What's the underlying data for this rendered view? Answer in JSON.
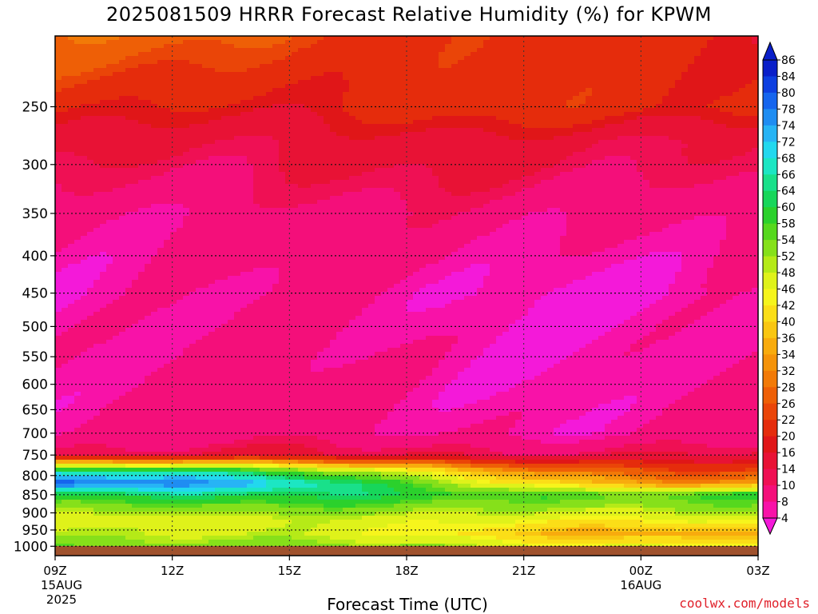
{
  "title": "2025081509 HRRR Forecast Relative Humidity (%) for KPWM",
  "credit": "coolwx.com/models",
  "chart_data": {
    "type": "heatmap",
    "title": "2025081509 HRRR Forecast Relative Humidity (%) for KPWM",
    "xlabel": "Forecast Time (UTC)",
    "ylabel": "",
    "x_ticks": [
      {
        "h": 0,
        "label": "09Z",
        "sub": [
          "15AUG",
          "2025"
        ]
      },
      {
        "h": 3,
        "label": "12Z",
        "sub": []
      },
      {
        "h": 6,
        "label": "15Z",
        "sub": []
      },
      {
        "h": 9,
        "label": "18Z",
        "sub": []
      },
      {
        "h": 12,
        "label": "21Z",
        "sub": []
      },
      {
        "h": 15,
        "label": "00Z",
        "sub": [
          "16AUG"
        ]
      },
      {
        "h": 18,
        "label": "03Z",
        "sub": []
      }
    ],
    "x_range_hours": [
      0,
      18
    ],
    "y_ticks": [
      250,
      300,
      350,
      400,
      450,
      500,
      550,
      600,
      650,
      700,
      750,
      800,
      850,
      900,
      950,
      1000
    ],
    "y_range_hpa": [
      200,
      1030
    ],
    "y_scale": "log",
    "grid": true,
    "colorbar": {
      "labels": [
        86,
        84,
        80,
        78,
        74,
        72,
        68,
        66,
        64,
        60,
        58,
        54,
        52,
        48,
        46,
        42,
        40,
        36,
        34,
        32,
        28,
        26,
        22,
        20,
        16,
        14,
        10,
        8,
        4
      ],
      "colors": [
        "#0a1fc9",
        "#0d3fe0",
        "#1565ee",
        "#1f8df2",
        "#27b4f5",
        "#22d8ee",
        "#1ce6c3",
        "#19e08a",
        "#17d65a",
        "#2bd12c",
        "#56d81e",
        "#86e01a",
        "#b5ea17",
        "#dff21a",
        "#f6f51c",
        "#fbde17",
        "#f9c611",
        "#f8ab0d",
        "#f59309",
        "#f27a07",
        "#ee5f06",
        "#ea4508",
        "#e52c0c",
        "#e01618",
        "#e81235",
        "#ef1054",
        "#f40f7a",
        "#f812a8",
        "#f419d9"
      ],
      "extend": "both"
    },
    "field_description_levels_hpa": [
      200,
      250,
      280,
      300,
      350,
      450,
      700,
      750,
      790,
      820,
      850,
      880,
      920,
      960,
      1000
    ],
    "rh_profile_start": [
      30,
      22,
      18,
      16,
      12,
      10,
      11,
      16,
      70,
      84,
      66,
      58,
      50,
      54,
      58
    ],
    "rh_profile_end": [
      22,
      24,
      17,
      16,
      12,
      8,
      10,
      16,
      26,
      34,
      60,
      56,
      48,
      38,
      48
    ]
  }
}
